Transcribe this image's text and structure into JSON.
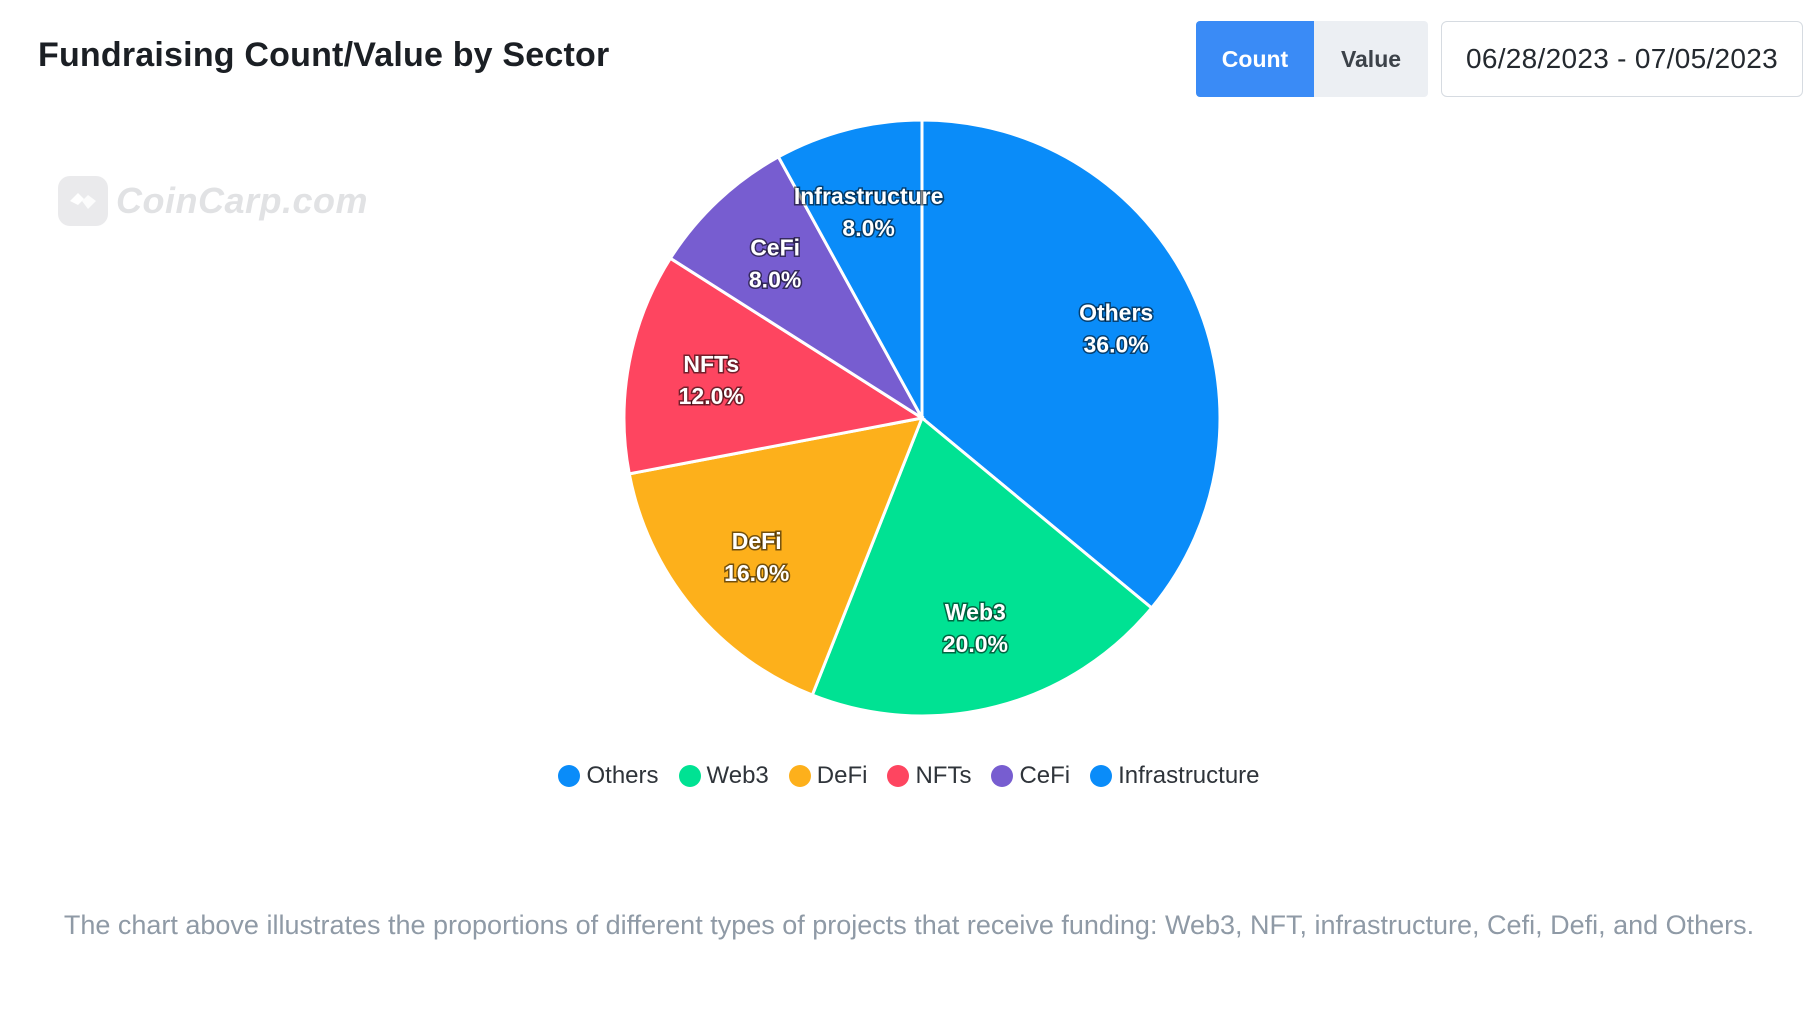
{
  "title": "Fundraising Count/Value by Sector",
  "toggle": {
    "count_label": "Count",
    "value_label": "Value",
    "selected": "Count"
  },
  "date_range": "06/28/2023 - 07/05/2023",
  "watermark": "CoinCarp.com",
  "colors": {
    "accent": "#3a8bf6"
  },
  "chart_data": {
    "type": "pie",
    "title": "Fundraising Count/Value by Sector",
    "slices": [
      {
        "label": "Others",
        "value": 36.0,
        "display": "36.0%",
        "color": "#0a8cf9"
      },
      {
        "label": "Web3",
        "value": 20.0,
        "display": "20.0%",
        "color": "#00e293"
      },
      {
        "label": "DeFi",
        "value": 16.0,
        "display": "16.0%",
        "color": "#fdb01b"
      },
      {
        "label": "NFTs",
        "value": 12.0,
        "display": "12.0%",
        "color": "#fe4560"
      },
      {
        "label": "CeFi",
        "value": 8.0,
        "display": "8.0%",
        "color": "#775dd0"
      },
      {
        "label": "Infrastructure",
        "value": 8.0,
        "display": "8.0%",
        "color": "#0a8cf9"
      }
    ],
    "legend_position": "bottom-center"
  },
  "caption": "The chart above illustrates the proportions of different types of projects that receive funding: Web3, NFT, infrastructure, Cefi, Defi, and Others."
}
